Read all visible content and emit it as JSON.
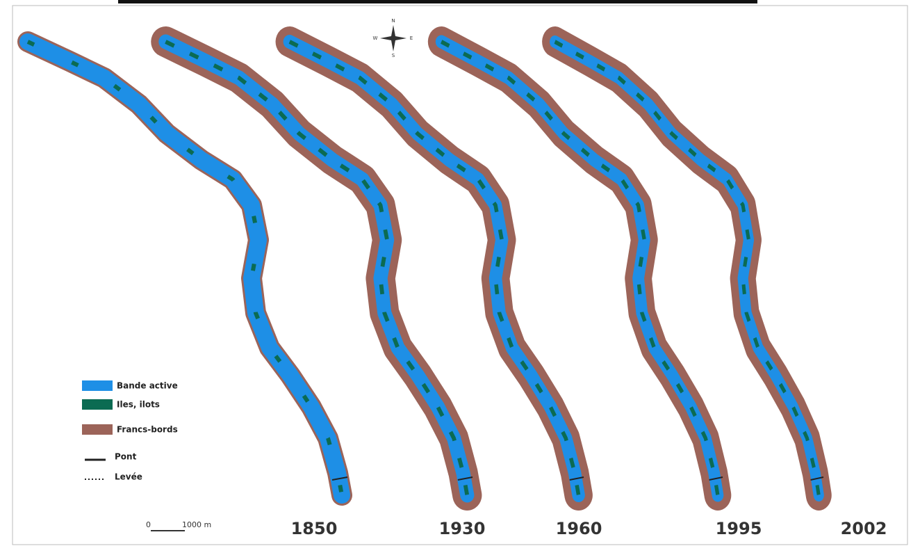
{
  "compass": {
    "north": "N",
    "south": "S",
    "east": "E",
    "west": "W"
  },
  "legend": [
    {
      "label": "Bande active"
    },
    {
      "label": "Iles, ilots"
    },
    {
      "label": "Francs-bords"
    },
    {
      "label": "Pont"
    },
    {
      "label": "Levée"
    }
  ],
  "scale_bar": {
    "start": "0",
    "end": "1000 m"
  },
  "panels": [
    {
      "year": "1850"
    },
    {
      "year": "1930"
    },
    {
      "year": "1960"
    },
    {
      "year": "1995"
    },
    {
      "year": "2002"
    }
  ]
}
